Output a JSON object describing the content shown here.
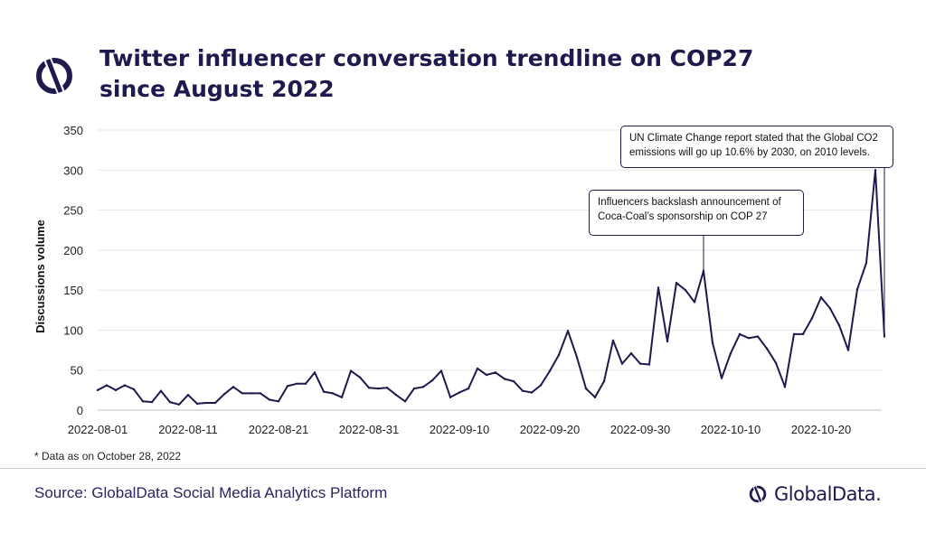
{
  "header": {
    "title": "Twitter influencer conversation trendline on COP27 since August 2022"
  },
  "footer": {
    "footnote": "* Data as on October 28, 2022",
    "source": "Source: GlobalData Social Media Analytics Platform",
    "brand": "GlobalData."
  },
  "colors": {
    "line": "#1e1a4d",
    "title": "#1e1a4d",
    "source": "#2b2560",
    "grid": "#e6e6e6"
  },
  "chart_data": {
    "type": "line",
    "title": "Twitter influencer conversation trendline on COP27 since August 2022",
    "ylabel": "Discussions volume",
    "xlabel": "",
    "x_start": "2022-08-01",
    "x_ticks": [
      "2022-08-01",
      "2022-08-11",
      "2022-08-21",
      "2022-08-31",
      "2022-09-10",
      "2022-09-20",
      "2022-09-30",
      "2022-10-10",
      "2022-10-20"
    ],
    "y_ticks": [
      0,
      50,
      100,
      150,
      200,
      250,
      300,
      350
    ],
    "ylim": [
      0,
      350
    ],
    "grid": true,
    "series": [
      {
        "values": [
          25,
          31,
          25,
          31,
          26,
          11,
          10,
          24,
          10,
          7,
          19,
          8,
          9,
          9,
          20,
          29,
          21,
          21,
          21,
          13,
          11,
          30,
          33,
          33,
          47,
          23,
          21,
          16,
          49,
          41,
          28,
          27,
          28,
          19,
          11,
          27,
          29,
          37,
          49,
          16,
          22,
          27,
          52,
          44,
          47,
          39,
          36,
          24,
          22,
          31,
          49,
          69,
          99,
          66,
          27,
          16,
          36,
          87,
          58,
          71,
          58,
          57,
          153,
          86,
          159,
          150,
          135,
          174,
          84,
          40,
          71,
          95,
          90,
          92,
          77,
          59,
          29,
          95,
          95,
          115,
          141,
          127,
          106,
          75,
          151,
          184,
          300,
          92
        ]
      }
    ],
    "annotations": [
      {
        "date": "2022-10-07",
        "text_lines": [
          "Influencers backslash announcement of",
          "Coca-Coal’s sponsorship on COP 27"
        ]
      },
      {
        "date": "2022-10-27",
        "text_lines": [
          "UN Climate Change report stated that the Global CO2",
          "emissions will go up 10.6% by 2030,  on 2010  levels."
        ]
      }
    ]
  }
}
